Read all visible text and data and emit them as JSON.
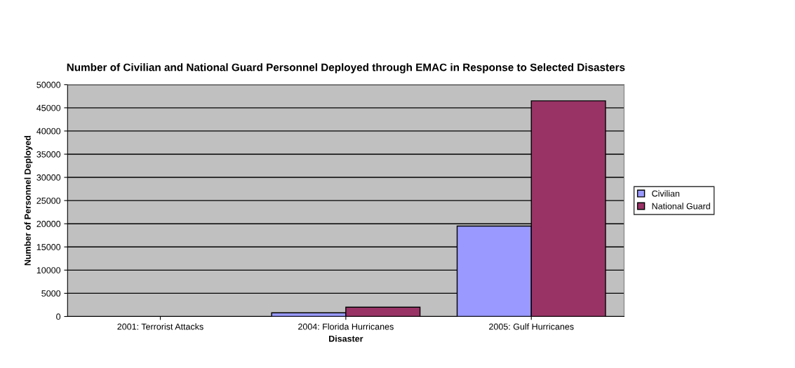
{
  "chart_data": {
    "type": "bar",
    "title": "Number of Civilian and National Guard Personnel Deployed through EMAC in Response to Selected Disasters",
    "xlabel": "Disaster",
    "ylabel": "Number of Personnel Deployed",
    "categories": [
      "2001: Terrorist Attacks",
      "2004: Florida Hurricanes",
      "2005: Gulf Hurricanes"
    ],
    "series": [
      {
        "name": "Civilian",
        "color": "#9999ff",
        "values": [
          null,
          800,
          19500
        ]
      },
      {
        "name": "National Guard",
        "color": "#993366",
        "values": [
          null,
          2000,
          46500
        ]
      }
    ],
    "ylim": [
      0,
      50000
    ],
    "yticks": [
      0,
      5000,
      10000,
      15000,
      20000,
      25000,
      30000,
      35000,
      40000,
      45000,
      50000
    ],
    "grid": "y",
    "legend": "right"
  }
}
